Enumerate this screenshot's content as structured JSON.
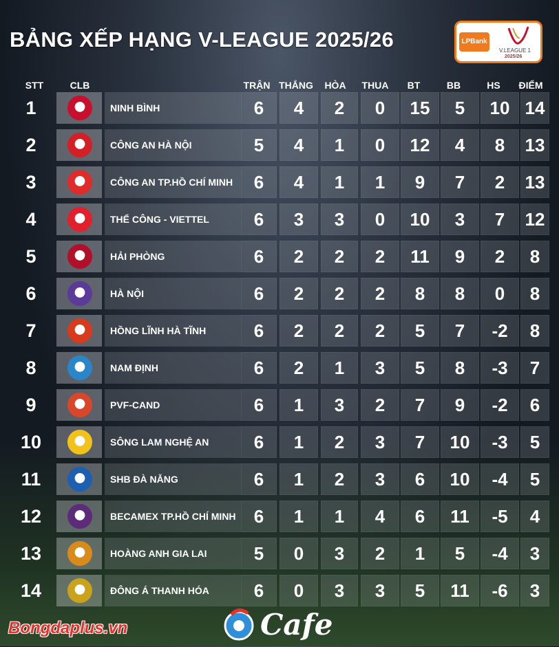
{
  "title": "BẢNG XẾP HẠNG V-LEAGUE 2025/26",
  "logo": {
    "brand": "LPBank",
    "league": "V.LEAGUE 1",
    "season": "2025/26"
  },
  "headers": {
    "stt": "STT",
    "clb": "CLB",
    "tran": "TRẬN",
    "thang": "THẮNG",
    "hoa": "HÒA",
    "thua": "THUA",
    "bt": "BT",
    "bb": "BB",
    "hs": "HS",
    "diem": "ĐIỂM"
  },
  "rows": [
    {
      "stt": "1",
      "name": "NINH BÌNH",
      "crest_color": "#c8102e",
      "tran": "6",
      "thang": "4",
      "hoa": "2",
      "thua": "0",
      "bt": "15",
      "bb": "5",
      "hs": "10",
      "diem": "14"
    },
    {
      "stt": "2",
      "name": "CÔNG AN HÀ NỘI",
      "crest_color": "#d32027",
      "tran": "5",
      "thang": "4",
      "hoa": "1",
      "thua": "0",
      "bt": "12",
      "bb": "4",
      "hs": "8",
      "diem": "13"
    },
    {
      "stt": "3",
      "name": "CÔNG AN TP.HỒ CHÍ MINH",
      "crest_color": "#e02b2b",
      "tran": "6",
      "thang": "4",
      "hoa": "1",
      "thua": "1",
      "bt": "9",
      "bb": "7",
      "hs": "2",
      "diem": "13"
    },
    {
      "stt": "4",
      "name": "THỂ CÔNG - VIETTEL",
      "crest_color": "#e2202c",
      "tran": "6",
      "thang": "3",
      "hoa": "3",
      "thua": "0",
      "bt": "10",
      "bb": "3",
      "hs": "7",
      "diem": "12"
    },
    {
      "stt": "5",
      "name": "HẢI PHÒNG",
      "crest_color": "#b0102a",
      "tran": "6",
      "thang": "2",
      "hoa": "2",
      "thua": "2",
      "bt": "11",
      "bb": "9",
      "hs": "2",
      "diem": "8"
    },
    {
      "stt": "6",
      "name": "HÀ NỘI",
      "crest_color": "#5b3a9a",
      "tran": "6",
      "thang": "2",
      "hoa": "2",
      "thua": "2",
      "bt": "8",
      "bb": "8",
      "hs": "0",
      "diem": "8"
    },
    {
      "stt": "7",
      "name": "HỒNG LĨNH HÀ TĨNH",
      "crest_color": "#d83a1c",
      "tran": "6",
      "thang": "2",
      "hoa": "2",
      "thua": "2",
      "bt": "5",
      "bb": "7",
      "hs": "-2",
      "diem": "8"
    },
    {
      "stt": "8",
      "name": "NAM ĐỊNH",
      "crest_color": "#2a86c8",
      "tran": "6",
      "thang": "2",
      "hoa": "1",
      "thua": "3",
      "bt": "5",
      "bb": "8",
      "hs": "-3",
      "diem": "7"
    },
    {
      "stt": "9",
      "name": "PVF-CAND",
      "crest_color": "#d9472a",
      "tran": "6",
      "thang": "1",
      "hoa": "3",
      "thua": "2",
      "bt": "7",
      "bb": "9",
      "hs": "-2",
      "diem": "6"
    },
    {
      "stt": "10",
      "name": "SÔNG LAM NGHỆ AN",
      "crest_color": "#f2c21b",
      "tran": "6",
      "thang": "1",
      "hoa": "2",
      "thua": "3",
      "bt": "7",
      "bb": "10",
      "hs": "-3",
      "diem": "5"
    },
    {
      "stt": "11",
      "name": "SHB ĐÀ NẴNG",
      "crest_color": "#1d5fb0",
      "tran": "6",
      "thang": "1",
      "hoa": "2",
      "thua": "3",
      "bt": "6",
      "bb": "10",
      "hs": "-4",
      "diem": "5"
    },
    {
      "stt": "12",
      "name": "BECAMEX TP.HỒ CHÍ MINH",
      "crest_color": "#5c2c7a",
      "tran": "6",
      "thang": "1",
      "hoa": "1",
      "thua": "4",
      "bt": "6",
      "bb": "11",
      "hs": "-5",
      "diem": "4"
    },
    {
      "stt": "13",
      "name": "HOÀNG ANH GIA LAI",
      "crest_color": "#d88a1a",
      "tran": "5",
      "thang": "0",
      "hoa": "3",
      "thua": "2",
      "bt": "1",
      "bb": "5",
      "hs": "-4",
      "diem": "3"
    },
    {
      "stt": "14",
      "name": "ĐÔNG Á THANH HÓA",
      "crest_color": "#caa21c",
      "tran": "6",
      "thang": "0",
      "hoa": "3",
      "thua": "3",
      "bt": "5",
      "bb": "11",
      "hs": "-6",
      "diem": "3"
    }
  ],
  "footer": {
    "source": "Bongdaplus.vn",
    "brand": "Cafe"
  }
}
